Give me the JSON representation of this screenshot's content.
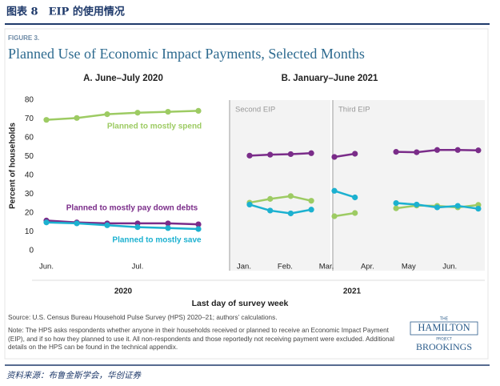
{
  "header": {
    "title": "图表 8　EIP 的使用情况"
  },
  "figure": {
    "label": "FIGURE 3.",
    "title": "Planned Use of Economic Impact Payments, Selected Months",
    "ylabel": "Percent of households",
    "xlabel": "Last day of survey week",
    "panel_b_title": "B. January–June 2021",
    "panel_b_year": "2021",
    "source": "Source: U.S. Census Bureau Household Pulse Survey (HPS) 2020–21; authors’ calculations.",
    "note": "Note: The HPS asks respondents whether anyone in their households received or planned to receive an Economic Impact Payment (EIP), and if so how they planned to use it. All non-respondents and those reportedly not receiving payment were excluded. Additional details on the HPS can be found in the technical appendix.",
    "logo": {
      "top": "THE",
      "name": "HAMILTON",
      "sub": "PROJECT",
      "brand": "BROOKINGS"
    }
  },
  "chart_data": [
    {
      "type": "line",
      "title": "A. June–July 2020",
      "year": "2020",
      "categories": [
        "Jun.",
        null,
        null,
        "Jul.",
        null,
        null
      ],
      "ylim": [
        0,
        80
      ],
      "yticks": [
        0,
        10,
        20,
        30,
        40,
        50,
        60,
        70,
        80
      ],
      "series": [
        {
          "name": "Planned to mostly spend",
          "color": "#9dcb63",
          "values": [
            69.5,
            70.5,
            72.5,
            73.3,
            73.8,
            74.3
          ]
        },
        {
          "name": "Planned to mostly pay down debts",
          "color": "#7a2c89",
          "values": [
            16,
            15,
            14.5,
            14.5,
            14.5,
            14
          ]
        },
        {
          "name": "Planned to mostly save",
          "color": "#1cb1d0",
          "values": [
            15,
            14.5,
            13.5,
            12.5,
            12,
            11.5
          ]
        }
      ]
    },
    {
      "type": "line",
      "annotation": "Second EIP",
      "categories": [
        "Jan.",
        null,
        "Feb.",
        null
      ],
      "ylim": [
        0,
        80
      ],
      "series": [
        {
          "color": "#9dcb63",
          "values": [
            25.5,
            27.5,
            29,
            26.5
          ]
        },
        {
          "color": "#7a2c89",
          "values": [
            50.5,
            51,
            51.3,
            51.8
          ]
        },
        {
          "color": "#1cb1d0",
          "values": [
            24.5,
            21.3,
            19.8,
            21.8
          ]
        }
      ]
    },
    {
      "type": "line",
      "annotation": "Third EIP",
      "categories": [
        "Mar.",
        null,
        "Apr.",
        null,
        "May",
        null,
        "Jun.",
        null
      ],
      "ylim": [
        0,
        80
      ],
      "series": [
        {
          "color": "#9dcb63",
          "values": [
            18.3,
            20,
            null,
            22.5,
            24,
            23.8,
            23,
            24.3
          ]
        },
        {
          "color": "#7a2c89",
          "values": [
            49.8,
            51.5,
            null,
            52.5,
            52.3,
            53.5,
            53.5,
            53.3
          ]
        },
        {
          "color": "#1cb1d0",
          "values": [
            31.8,
            28.3,
            null,
            25.3,
            24.5,
            23,
            23.8,
            22.3
          ]
        }
      ]
    }
  ],
  "footer": {
    "source": "资料来源：布鲁金斯学会，华创证券"
  }
}
